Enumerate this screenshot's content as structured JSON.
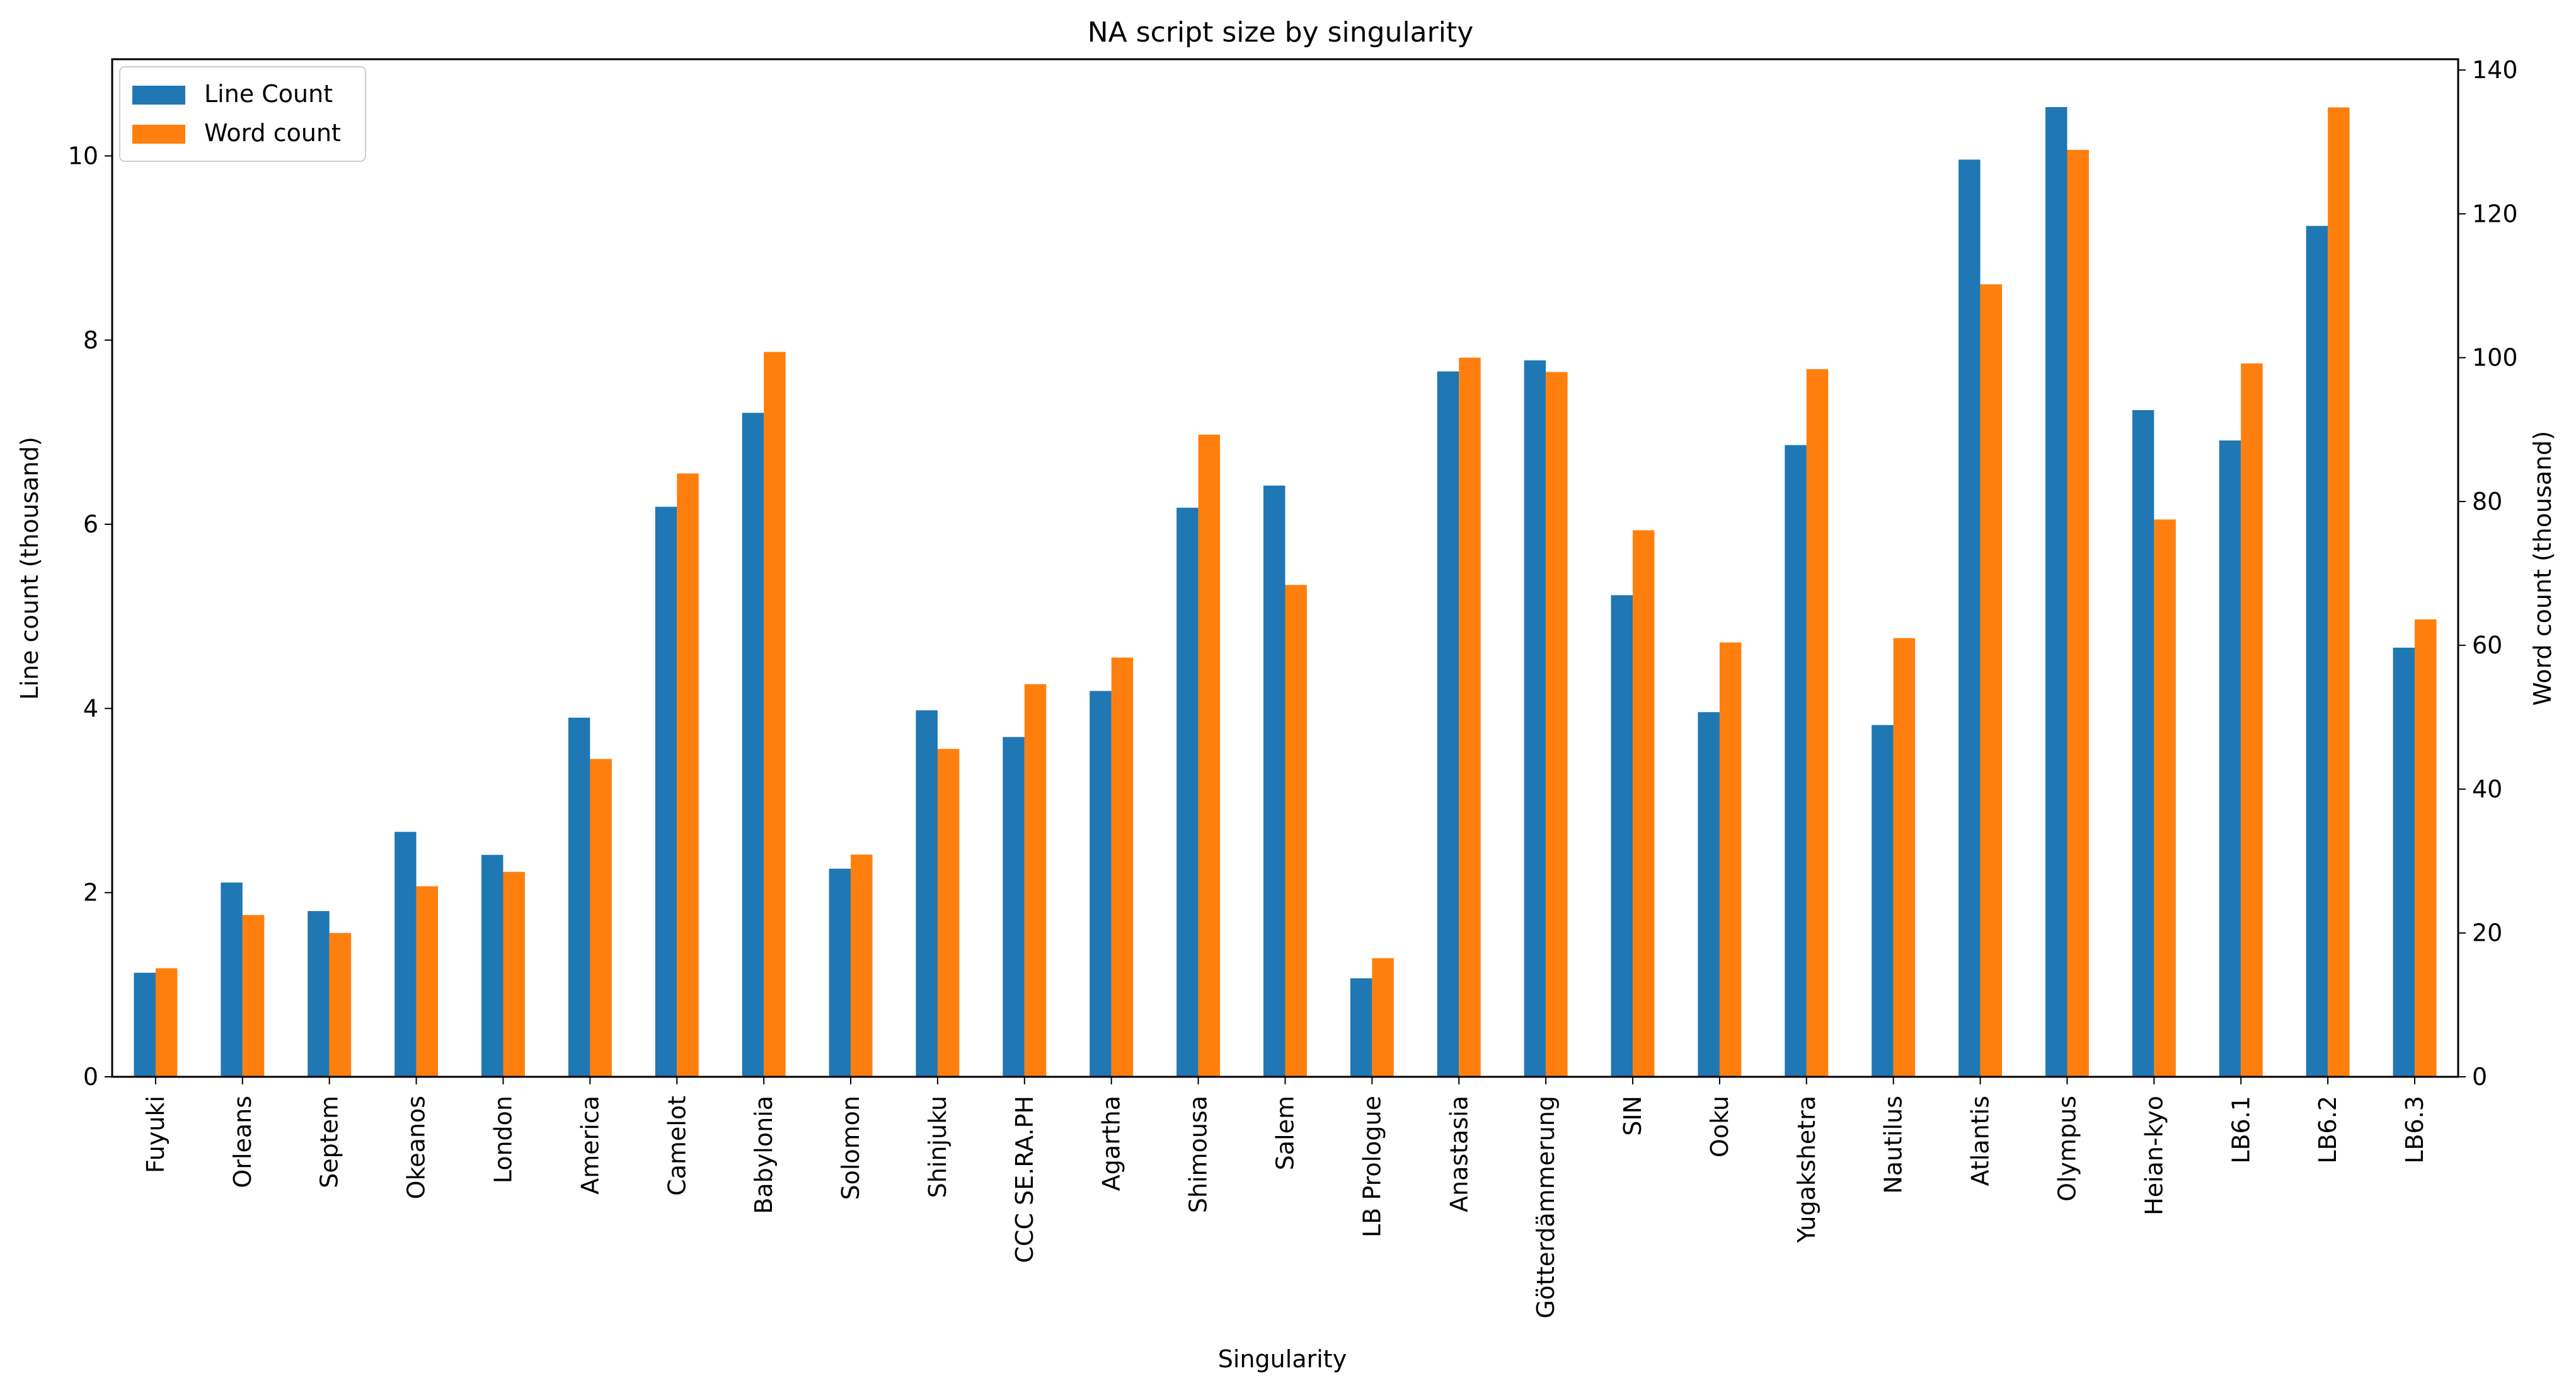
{
  "chart_data": {
    "type": "bar",
    "title": "NA script size by singularity",
    "xlabel": "Singularity",
    "ylabel": "Line count (thousand)",
    "y2label": "Word count (thousand)",
    "ylim": [
      0,
      11.05
    ],
    "y2lim": [
      0,
      141.5
    ],
    "yticks": [
      "0",
      "2",
      "4",
      "6",
      "8",
      "10"
    ],
    "y2ticks": [
      "0",
      "20",
      "40",
      "60",
      "80",
      "100",
      "120",
      "140"
    ],
    "legend_position": "upper left",
    "categories": [
      "Fuyuki",
      "Orleans",
      "Septem",
      "Okeanos",
      "London",
      "America",
      "Camelot",
      "Babylonia",
      "Solomon",
      "Shinjuku",
      "CCC SE.RA.PH",
      "Agartha",
      "Shimousa",
      "Salem",
      "LB Prologue",
      "Anastasia",
      "Götterdämmerung",
      "SIN",
      "Ooku",
      "Yugakshetra",
      "Nautilus",
      "Atlantis",
      "Olympus",
      "Heian-kyo",
      "LB6.1",
      "LB6.2",
      "LB6.3"
    ],
    "series": [
      {
        "name": "Line Count",
        "axis": "left",
        "color": "#1f77b4",
        "values": [
          1.13,
          2.11,
          1.8,
          2.66,
          2.41,
          3.9,
          6.19,
          7.21,
          2.26,
          3.98,
          3.69,
          4.19,
          6.18,
          6.42,
          1.07,
          7.66,
          7.78,
          5.23,
          3.96,
          6.86,
          3.82,
          9.96,
          10.53,
          7.24,
          6.91,
          9.24,
          4.66
        ]
      },
      {
        "name": "Word count",
        "axis": "right",
        "color": "#ff7f0e",
        "values": [
          15.1,
          22.5,
          20.0,
          26.5,
          28.5,
          44.2,
          83.9,
          100.8,
          30.9,
          45.6,
          54.6,
          58.3,
          89.3,
          68.4,
          16.5,
          100.0,
          98.0,
          76.0,
          60.4,
          98.4,
          61.0,
          110.2,
          128.9,
          77.5,
          99.2,
          134.8,
          63.6
        ]
      }
    ]
  }
}
